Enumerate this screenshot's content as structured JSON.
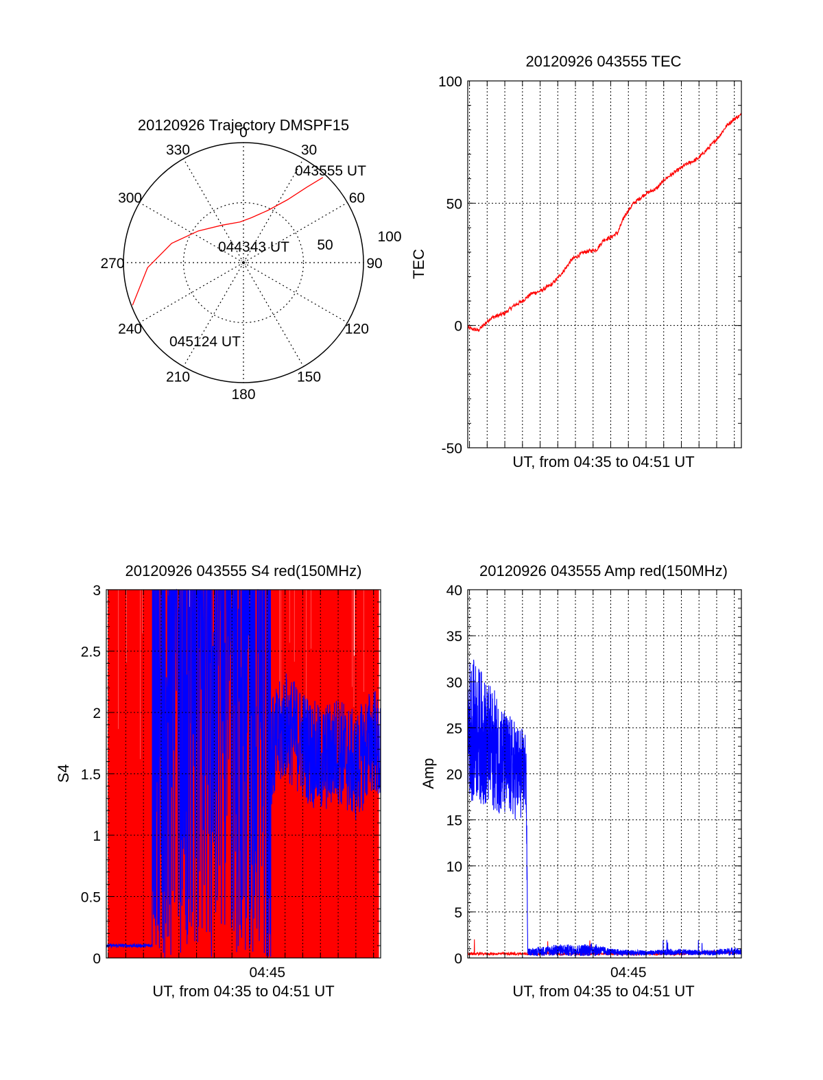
{
  "colors": {
    "red": "#ff0000",
    "blue": "#0000ff",
    "grid": "#000000",
    "background": "#ffffff"
  },
  "chart_data": [
    {
      "type": "polar",
      "title": "20120926 Trajectory DMSPF15",
      "angle_ticks": [
        "0",
        "30",
        "60",
        "90",
        "120",
        "150",
        "180",
        "210",
        "240",
        "270",
        "300",
        "330"
      ],
      "angle_tick_values_deg": [
        0,
        30,
        60,
        90,
        120,
        150,
        180,
        210,
        240,
        270,
        300,
        330
      ],
      "radial_ticks": [
        "50",
        "100"
      ],
      "radial_tick_values": [
        50,
        100
      ],
      "rmax": 100,
      "series": [
        {
          "color": "#ff0000",
          "points": [
            [
              43,
              97
            ],
            [
              40,
              82
            ],
            [
              35,
              64
            ],
            [
              25,
              48
            ],
            [
              10,
              38
            ],
            [
              -5,
              34
            ],
            [
              -30,
              36
            ],
            [
              -55,
              46
            ],
            [
              -75,
              62
            ],
            [
              -93,
              80
            ],
            [
              -111,
              99
            ]
          ]
        }
      ],
      "annotations": [
        {
          "text": "043555 UT",
          "at": "start"
        },
        {
          "text": "044343 UT",
          "at": "center"
        },
        {
          "text": "045124 UT",
          "at": "end"
        }
      ]
    },
    {
      "type": "line",
      "title": "20120926 043555 TEC",
      "xlabel": "UT, from 04:35 to 04:51 UT",
      "ylabel": "TEC",
      "ylim": [
        -50,
        100
      ],
      "yticks": [
        "-50",
        "0",
        "50",
        "100"
      ],
      "xlim_min": [
        35.9,
        51.4
      ],
      "grid": true,
      "series": [
        {
          "color": "#ff0000",
          "x": [
            35.9,
            36.5,
            37.2,
            38.0,
            38.5,
            39.0,
            39.5,
            40.0,
            40.7,
            41.3,
            41.8,
            42.5,
            43.2,
            43.6,
            44.0,
            44.4,
            44.8,
            45.3,
            46.0,
            46.6,
            47.1,
            47.7,
            48.3,
            48.9,
            49.6,
            50.1,
            50.6,
            51.1,
            51.4
          ],
          "y": [
            -1,
            -2,
            3,
            5,
            8,
            10,
            13,
            14,
            17,
            22,
            27,
            30,
            31,
            35,
            36,
            38,
            45,
            50,
            54,
            56,
            60,
            63,
            66,
            68,
            73,
            77,
            82,
            85,
            86
          ]
        }
      ]
    },
    {
      "type": "line",
      "title": "20120926 043555 S4 red(150MHz)",
      "xlabel": "UT, from 04:35 to 04:51 UT",
      "ylabel": "S4",
      "ylim": [
        0,
        3
      ],
      "yticks": [
        "0",
        "0.5",
        "1",
        "1.5",
        "2",
        "2.5",
        "3"
      ],
      "xticks": [
        "04:45"
      ],
      "xlim_min": [
        35.9,
        51.4
      ],
      "grid": true,
      "series": [
        {
          "color": "#ff0000",
          "description_level": "saturated",
          "band": {
            "x": [
              35.9,
              51.4
            ],
            "y": [
              0,
              3
            ]
          }
        },
        {
          "color": "#0000ff",
          "x": [
            35.9,
            37.0,
            38.5,
            39.0,
            40.5,
            41.0,
            42.5,
            43.0,
            44.0,
            44.5,
            45.0,
            46.0,
            47.0,
            48.0,
            49.0,
            50.0,
            51.0,
            51.4
          ],
          "y": [
            0.1,
            0.1,
            0.1,
            0.12,
            0.5,
            3.0,
            0.4,
            3.0,
            0.3,
            3.0,
            1.6,
            1.9,
            1.75,
            1.6,
            1.7,
            1.55,
            1.8,
            1.6
          ]
        }
      ]
    },
    {
      "type": "line",
      "title": "20120926 043555 Amp red(150MHz)",
      "xlabel": "UT, from 04:35 to 04:51 UT",
      "ylabel": "Amp",
      "ylim": [
        0,
        40
      ],
      "yticks": [
        "0",
        "5",
        "10",
        "15",
        "20",
        "25",
        "30",
        "35",
        "40"
      ],
      "xticks": [
        "04:45"
      ],
      "xlim_min": [
        35.9,
        51.4
      ],
      "grid": true,
      "series": [
        {
          "color": "#0000ff",
          "x": [
            35.9,
            36.5,
            37.0,
            37.5,
            38.0,
            38.5,
            39.0,
            39.2,
            39.3,
            40.0,
            41.0,
            42.0,
            43.0,
            44.0,
            45.0,
            46.0,
            47.0,
            48.0,
            49.0,
            50.0,
            51.0,
            51.4
          ],
          "y_low": [
            17,
            17,
            16,
            16,
            15,
            15,
            15,
            16,
            0.3,
            0.2,
            0.2,
            0.2,
            0.2,
            0.3,
            0.2,
            0.3,
            0.3,
            0.3,
            0.3,
            0.3,
            0.3,
            0.3
          ],
          "y_high": [
            33,
            32,
            30,
            29,
            27,
            26,
            25,
            25,
            1,
            1.2,
            1.5,
            1.4,
            1.6,
            1.0,
            0.9,
            0.8,
            0.9,
            1.0,
            0.8,
            0.9,
            1.2,
            0.9
          ]
        },
        {
          "color": "#ff0000",
          "x": [
            35.9,
            37.0,
            38.0,
            39.0,
            40.0,
            42.0,
            44.0,
            46.0,
            48.0,
            50.0,
            51.4
          ],
          "y": [
            0.3,
            0.3,
            0.3,
            0.3,
            0.3,
            0.3,
            0.3,
            0.3,
            0.3,
            0.5,
            0.4
          ]
        }
      ]
    }
  ]
}
